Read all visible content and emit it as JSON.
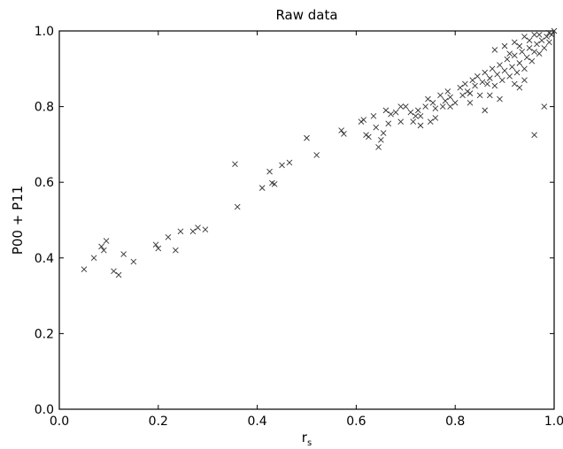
{
  "chart_data": {
    "type": "scatter",
    "title": "Raw data",
    "xlabel": "r",
    "xlabel_subscript": "s",
    "ylabel": "P00 + P11",
    "xlim": [
      0.0,
      1.0
    ],
    "ylim": [
      0.0,
      1.0
    ],
    "xticks": [
      "0.0",
      "0.2",
      "0.4",
      "0.6",
      "0.8",
      "1.0"
    ],
    "yticks": [
      "0.0",
      "0.2",
      "0.4",
      "0.6",
      "0.8",
      "1.0"
    ],
    "grid": false,
    "legend": "none",
    "marker": "x",
    "marker_color": "#333333",
    "series": [
      {
        "points": [
          [
            0.05,
            0.37
          ],
          [
            0.07,
            0.4
          ],
          [
            0.085,
            0.43
          ],
          [
            0.09,
            0.42
          ],
          [
            0.095,
            0.445
          ],
          [
            0.11,
            0.365
          ],
          [
            0.12,
            0.355
          ],
          [
            0.13,
            0.41
          ],
          [
            0.15,
            0.39
          ],
          [
            0.195,
            0.435
          ],
          [
            0.2,
            0.425
          ],
          [
            0.22,
            0.455
          ],
          [
            0.235,
            0.42
          ],
          [
            0.245,
            0.47
          ],
          [
            0.27,
            0.47
          ],
          [
            0.28,
            0.48
          ],
          [
            0.295,
            0.475
          ],
          [
            0.355,
            0.648
          ],
          [
            0.36,
            0.535
          ],
          [
            0.41,
            0.585
          ],
          [
            0.425,
            0.628
          ],
          [
            0.43,
            0.598
          ],
          [
            0.435,
            0.595
          ],
          [
            0.45,
            0.645
          ],
          [
            0.465,
            0.652
          ],
          [
            0.5,
            0.717
          ],
          [
            0.52,
            0.672
          ],
          [
            0.57,
            0.737
          ],
          [
            0.575,
            0.728
          ],
          [
            0.61,
            0.76
          ],
          [
            0.615,
            0.765
          ],
          [
            0.62,
            0.725
          ],
          [
            0.625,
            0.72
          ],
          [
            0.635,
            0.775
          ],
          [
            0.64,
            0.745
          ],
          [
            0.645,
            0.693
          ],
          [
            0.65,
            0.712
          ],
          [
            0.655,
            0.73
          ],
          [
            0.66,
            0.79
          ],
          [
            0.665,
            0.755
          ],
          [
            0.67,
            0.78
          ],
          [
            0.68,
            0.785
          ],
          [
            0.69,
            0.76
          ],
          [
            0.7,
            0.8
          ],
          [
            0.71,
            0.785
          ],
          [
            0.715,
            0.76
          ],
          [
            0.72,
            0.775
          ],
          [
            0.725,
            0.79
          ],
          [
            0.73,
            0.75
          ],
          [
            0.74,
            0.8
          ],
          [
            0.745,
            0.82
          ],
          [
            0.75,
            0.76
          ],
          [
            0.755,
            0.81
          ],
          [
            0.76,
            0.795
          ],
          [
            0.77,
            0.83
          ],
          [
            0.775,
            0.8
          ],
          [
            0.78,
            0.815
          ],
          [
            0.785,
            0.84
          ],
          [
            0.79,
            0.825
          ],
          [
            0.8,
            0.81
          ],
          [
            0.81,
            0.85
          ],
          [
            0.815,
            0.83
          ],
          [
            0.82,
            0.86
          ],
          [
            0.825,
            0.84
          ],
          [
            0.83,
            0.81
          ],
          [
            0.835,
            0.87
          ],
          [
            0.84,
            0.855
          ],
          [
            0.845,
            0.88
          ],
          [
            0.85,
            0.83
          ],
          [
            0.855,
            0.865
          ],
          [
            0.86,
            0.89
          ],
          [
            0.865,
            0.86
          ],
          [
            0.87,
            0.875
          ],
          [
            0.875,
            0.9
          ],
          [
            0.88,
            0.855
          ],
          [
            0.885,
            0.885
          ],
          [
            0.89,
            0.91
          ],
          [
            0.895,
            0.87
          ],
          [
            0.9,
            0.895
          ],
          [
            0.905,
            0.925
          ],
          [
            0.91,
            0.88
          ],
          [
            0.915,
            0.905
          ],
          [
            0.92,
            0.935
          ],
          [
            0.925,
            0.89
          ],
          [
            0.93,
            0.915
          ],
          [
            0.935,
            0.945
          ],
          [
            0.94,
            0.9
          ],
          [
            0.945,
            0.93
          ],
          [
            0.95,
            0.955
          ],
          [
            0.955,
            0.92
          ],
          [
            0.96,
            0.945
          ],
          [
            0.965,
            0.965
          ],
          [
            0.97,
            0.94
          ],
          [
            0.975,
            0.975
          ],
          [
            0.98,
            0.955
          ],
          [
            0.985,
            0.985
          ],
          [
            0.99,
            0.97
          ],
          [
            0.995,
            0.99
          ],
          [
            0.96,
            0.725
          ],
          [
            0.98,
            0.8
          ],
          [
            0.86,
            0.79
          ],
          [
            0.89,
            0.82
          ],
          [
            0.93,
            0.85
          ],
          [
            0.94,
            0.87
          ],
          [
            0.87,
            0.83
          ],
          [
            0.92,
            0.86
          ],
          [
            0.83,
            0.835
          ],
          [
            0.76,
            0.77
          ],
          [
            0.79,
            0.8
          ],
          [
            0.73,
            0.775
          ],
          [
            0.69,
            0.8
          ],
          [
            0.88,
            0.95
          ],
          [
            0.9,
            0.96
          ],
          [
            0.92,
            0.97
          ],
          [
            0.94,
            0.985
          ],
          [
            0.96,
            0.99
          ],
          [
            0.91,
            0.94
          ],
          [
            0.93,
            0.96
          ],
          [
            0.95,
            0.975
          ],
          [
            0.97,
            0.99
          ],
          [
            0.99,
            0.995
          ],
          [
            1.0,
            1.0
          ]
        ]
      }
    ]
  }
}
